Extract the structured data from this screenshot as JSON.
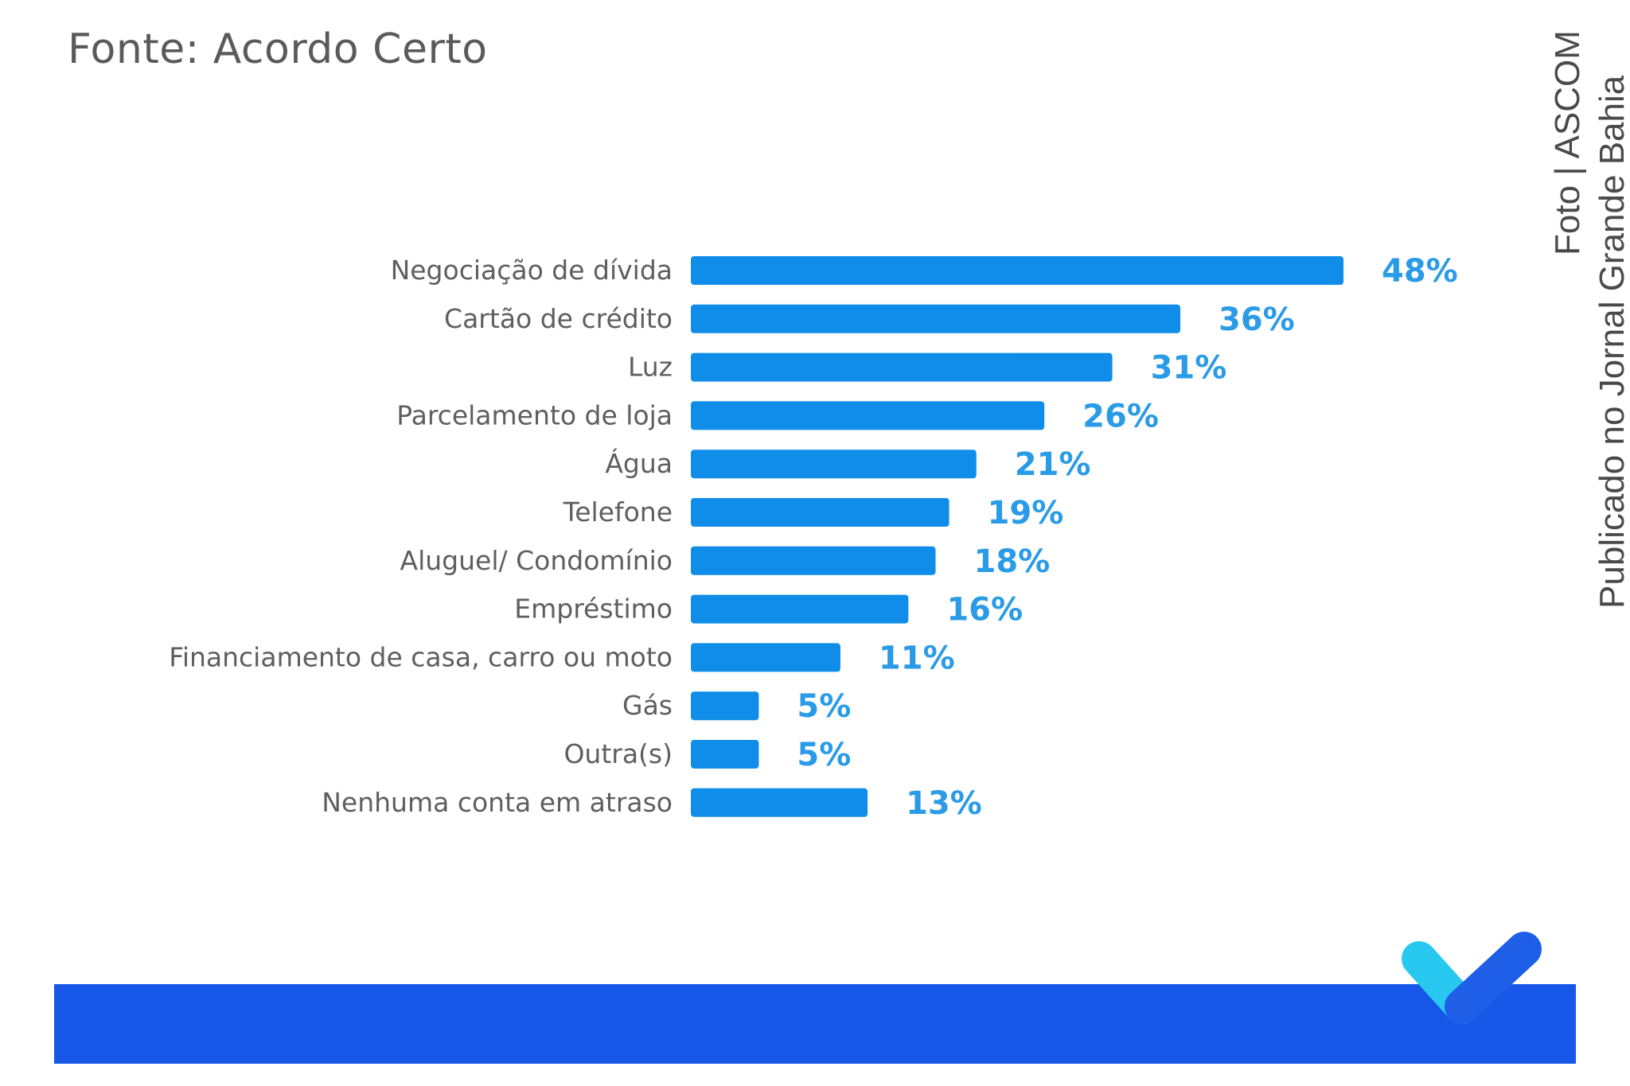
{
  "source_text": "Fonte: Acordo Certo",
  "credit": {
    "line1": "Foto | ASCOM",
    "line2": "Publicado no Jornal Grande Bahia"
  },
  "colors": {
    "bar": "#0f8de9",
    "value_label": "#2a9be6",
    "footer_bar": "#1757e8",
    "logo_light": "#28c8f0",
    "logo_dark": "#1f5ee6"
  },
  "logo_icon": "checkmark-logo-icon",
  "chart_data": {
    "type": "bar",
    "orientation": "horizontal",
    "categories": [
      "Negociação de dívida",
      "Cartão de crédito",
      "Luz",
      "Parcelamento de loja",
      "Água",
      "Telefone",
      "Aluguel/ Condomínio",
      "Empréstimo",
      "Financiamento de casa, carro ou moto",
      "Gás",
      "Outra(s)",
      "Nenhuma conta em atraso"
    ],
    "values": [
      48,
      36,
      31,
      26,
      21,
      19,
      18,
      16,
      11,
      5,
      5,
      13
    ],
    "value_labels": [
      "48%",
      "36%",
      "31%",
      "26%",
      "21%",
      "19%",
      "18%",
      "16%",
      "11%",
      "5%",
      "5%",
      "13%"
    ],
    "xlim": [
      0,
      48
    ],
    "grid": false,
    "legend": "none"
  }
}
